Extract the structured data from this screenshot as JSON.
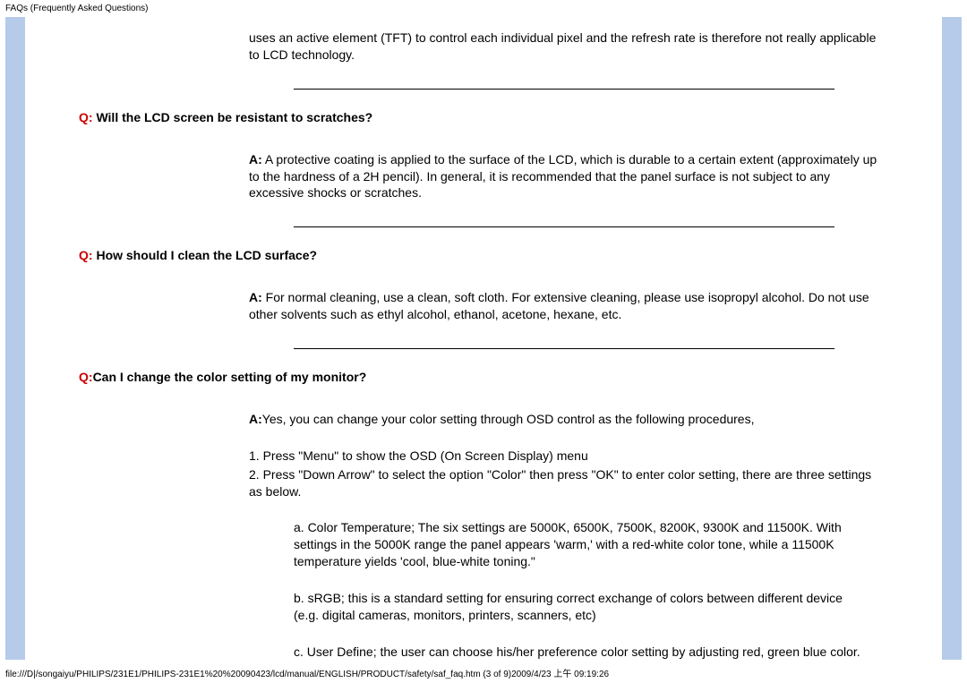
{
  "header": {
    "title": "FAQs (Frequently Asked Questions)"
  },
  "intro": "uses an active element (TFT) to control each individual pixel and the refresh rate is therefore not really applicable to LCD technology.",
  "faq1": {
    "qlabel": "Q:",
    "question": " Will the LCD screen be resistant to scratches?",
    "alabel": "A:",
    "answer": " A protective coating is applied to the surface of the LCD, which is durable to a certain extent (approximately up to the hardness of a 2H pencil). In general, it is recommended that the panel surface is not subject to any excessive shocks or scratches."
  },
  "faq2": {
    "qlabel": "Q:",
    "question": " How should I clean the LCD surface?",
    "alabel": "A:",
    "answer": " For normal cleaning, use a clean, soft cloth. For extensive cleaning, please use isopropyl alcohol. Do not use other solvents such as ethyl alcohol, ethanol, acetone, hexane, etc."
  },
  "faq3": {
    "qlabel": "Q:",
    "question": "Can I change the color setting of my monitor?",
    "alabel": "A:",
    "answer": "Yes, you can change your color setting through OSD control as the following procedures,",
    "step1": "1. Press \"Menu\" to show the OSD (On Screen Display) menu",
    "step2": "2. Press \"Down Arrow\" to select the option \"Color\" then press \"OK\" to enter color setting, there are three settings as below.",
    "opta": "a. Color Temperature; The six settings are  5000K, 6500K, 7500K, 8200K, 9300K and 11500K. With settings in the 5000K range the panel appears 'warm,' with a red-white color tone, while a 11500K temperature yields 'cool, blue-white toning.\"",
    "optb": "b. sRGB; this is a standard setting for ensuring correct exchange of colors between different device (e.g. digital cameras, monitors, printers, scanners, etc)",
    "optc": "c. User Define; the user can choose his/her preference color setting by adjusting red, green blue color."
  },
  "footer": {
    "text": "file:///D|/songaiyu/PHILIPS/231E1/PHILIPS-231E1%20%20090423/lcd/manual/ENGLISH/PRODUCT/safety/saf_faq.htm (3 of 9)2009/4/23 上午 09:19:26"
  }
}
